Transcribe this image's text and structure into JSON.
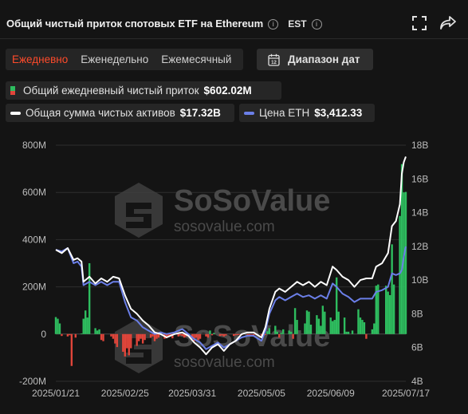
{
  "header": {
    "title": "Общий чистый приток спотовых ETF на Ethereum",
    "timezone": "EST"
  },
  "periods": [
    "Ежедневно",
    "Еженедельно",
    "Ежемесячный"
  ],
  "active_period": 0,
  "date_range_label": "Диапазон дат",
  "legend": {
    "inflow_label": "Общий ежедневный чистый приток",
    "inflow_value": "$602.02M",
    "assets_label": "Общая сумма чистых активов",
    "assets_value": "$17.32B",
    "eth_label": "Цена ETH",
    "eth_value": "$3,412.33"
  },
  "watermark": {
    "brand": "SoSoValue",
    "site": "sosovalue.com"
  },
  "colors": {
    "positive": "#2ebd5f",
    "negative": "#e0453a",
    "assets_line": "#ffffff",
    "eth_line": "#6b7fe8",
    "accent": "#ff4b2b"
  },
  "chart_data": {
    "type": "bar+line",
    "left_axis": {
      "ticks": [
        "-200M",
        "0",
        "200M",
        "400M",
        "600M",
        "800M"
      ],
      "range": [
        -200,
        800
      ],
      "unit": "M USD"
    },
    "right_axis": {
      "ticks": [
        "4B",
        "6B",
        "8B",
        "10B",
        "12B",
        "14B",
        "16B",
        "18B"
      ],
      "range": [
        4,
        18
      ],
      "unit": "B USD"
    },
    "x_ticks": [
      "2025/01/21",
      "2025/02/25",
      "2025/03/31",
      "2025/05/05",
      "2025/06/09",
      "2025/07/17"
    ],
    "x_range": [
      "2025/01/21",
      "2025/07/17"
    ],
    "daily_net_inflow": [
      {
        "date": "2025/01/21",
        "value": 72
      },
      {
        "date": "2025/01/22",
        "value": 65
      },
      {
        "date": "2025/01/23",
        "value": 45
      },
      {
        "date": "2025/01/24",
        "value": -8
      },
      {
        "date": "2025/01/27",
        "value": -10
      },
      {
        "date": "2025/01/28",
        "value": -5
      },
      {
        "date": "2025/01/29",
        "value": -135
      },
      {
        "date": "2025/01/31",
        "value": -15
      },
      {
        "date": "2025/02/03",
        "value": 2
      },
      {
        "date": "2025/02/04",
        "value": 65
      },
      {
        "date": "2025/02/05",
        "value": 100
      },
      {
        "date": "2025/02/06",
        "value": 70
      },
      {
        "date": "2025/02/07",
        "value": 300
      },
      {
        "date": "2025/02/10",
        "value": 25
      },
      {
        "date": "2025/02/11",
        "value": 15
      },
      {
        "date": "2025/02/12",
        "value": 20
      },
      {
        "date": "2025/02/13",
        "value": -25
      },
      {
        "date": "2025/02/14",
        "value": -30
      },
      {
        "date": "2025/02/18",
        "value": -10
      },
      {
        "date": "2025/02/19",
        "value": -20
      },
      {
        "date": "2025/02/20",
        "value": -40
      },
      {
        "date": "2025/02/21",
        "value": -55
      },
      {
        "date": "2025/02/24",
        "value": -75
      },
      {
        "date": "2025/02/25",
        "value": -95
      },
      {
        "date": "2025/02/26",
        "value": -60
      },
      {
        "date": "2025/02/27",
        "value": -90
      },
      {
        "date": "2025/02/28",
        "value": -60
      },
      {
        "date": "2025/03/03",
        "value": -50
      },
      {
        "date": "2025/03/04",
        "value": -30
      },
      {
        "date": "2025/03/05",
        "value": -20
      },
      {
        "date": "2025/03/06",
        "value": -40
      },
      {
        "date": "2025/03/07",
        "value": -25
      },
      {
        "date": "2025/03/10",
        "value": -15
      },
      {
        "date": "2025/03/11",
        "value": -10
      },
      {
        "date": "2025/03/12",
        "value": -30
      },
      {
        "date": "2025/03/13",
        "value": -20
      },
      {
        "date": "2025/03/14",
        "value": -15
      },
      {
        "date": "2025/03/17",
        "value": -20
      },
      {
        "date": "2025/03/18",
        "value": -12
      },
      {
        "date": "2025/03/19",
        "value": -10
      },
      {
        "date": "2025/03/20",
        "value": -8
      },
      {
        "date": "2025/03/21",
        "value": -18
      },
      {
        "date": "2025/03/24",
        "value": -10
      },
      {
        "date": "2025/03/25",
        "value": -5
      },
      {
        "date": "2025/03/26",
        "value": -8
      },
      {
        "date": "2025/03/27",
        "value": -15
      },
      {
        "date": "2025/03/28",
        "value": -10
      },
      {
        "date": "2025/03/31",
        "value": -20
      },
      {
        "date": "2025/04/01",
        "value": -30
      },
      {
        "date": "2025/04/02",
        "value": -15
      },
      {
        "date": "2025/04/03",
        "value": -25
      },
      {
        "date": "2025/04/04",
        "value": -20
      },
      {
        "date": "2025/04/07",
        "value": -10
      },
      {
        "date": "2025/04/08",
        "value": -15
      },
      {
        "date": "2025/04/09",
        "value": 15
      },
      {
        "date": "2025/04/10",
        "value": -5
      },
      {
        "date": "2025/04/11",
        "value": 5
      },
      {
        "date": "2025/04/14",
        "value": -8
      },
      {
        "date": "2025/04/15",
        "value": -6
      },
      {
        "date": "2025/04/16",
        "value": -10
      },
      {
        "date": "2025/04/17",
        "value": -6
      },
      {
        "date": "2025/04/21",
        "value": -8
      },
      {
        "date": "2025/04/22",
        "value": -5
      },
      {
        "date": "2025/04/23",
        "value": -4
      },
      {
        "date": "2025/04/24",
        "value": -3
      },
      {
        "date": "2025/04/25",
        "value": -4
      },
      {
        "date": "2025/04/28",
        "value": -6
      },
      {
        "date": "2025/04/29",
        "value": -4
      },
      {
        "date": "2025/04/30",
        "value": -3
      },
      {
        "date": "2025/05/01",
        "value": -5
      },
      {
        "date": "2025/05/02",
        "value": -2
      },
      {
        "date": "2025/05/05",
        "value": -6
      },
      {
        "date": "2025/05/06",
        "value": -3
      },
      {
        "date": "2025/05/07",
        "value": -4
      },
      {
        "date": "2025/05/08",
        "value": 12
      },
      {
        "date": "2025/05/09",
        "value": 25
      },
      {
        "date": "2025/05/12",
        "value": 35
      },
      {
        "date": "2025/05/13",
        "value": 10
      },
      {
        "date": "2025/05/14",
        "value": -15
      },
      {
        "date": "2025/05/15",
        "value": 5
      },
      {
        "date": "2025/05/16",
        "value": 20
      },
      {
        "date": "2025/05/19",
        "value": 15
      },
      {
        "date": "2025/05/20",
        "value": 10
      },
      {
        "date": "2025/05/21",
        "value": -20
      },
      {
        "date": "2025/05/22",
        "value": 110
      },
      {
        "date": "2025/05/23",
        "value": 60
      },
      {
        "date": "2025/05/27",
        "value": 45
      },
      {
        "date": "2025/05/28",
        "value": 100
      },
      {
        "date": "2025/05/29",
        "value": 95
      },
      {
        "date": "2025/05/30",
        "value": 40
      },
      {
        "date": "2025/06/02",
        "value": 80
      },
      {
        "date": "2025/06/03",
        "value": 65
      },
      {
        "date": "2025/06/04",
        "value": 35
      },
      {
        "date": "2025/06/05",
        "value": 120
      },
      {
        "date": "2025/06/06",
        "value": 95
      },
      {
        "date": "2025/06/09",
        "value": 70
      },
      {
        "date": "2025/06/10",
        "value": 55
      },
      {
        "date": "2025/06/11",
        "value": 60
      },
      {
        "date": "2025/06/12",
        "value": 240
      },
      {
        "date": "2025/06/13",
        "value": 95
      },
      {
        "date": "2025/06/16",
        "value": 70
      },
      {
        "date": "2025/06/17",
        "value": 10
      },
      {
        "date": "2025/06/18",
        "value": 10
      },
      {
        "date": "2025/06/20",
        "value": 15
      },
      {
        "date": "2025/06/23",
        "value": 105
      },
      {
        "date": "2025/06/24",
        "value": 70
      },
      {
        "date": "2025/06/25",
        "value": 60
      },
      {
        "date": "2025/06/26",
        "value": 50
      },
      {
        "date": "2025/06/27",
        "value": -20
      },
      {
        "date": "2025/06/30",
        "value": 20
      },
      {
        "date": "2025/07/01",
        "value": 45
      },
      {
        "date": "2025/07/02",
        "value": 205
      },
      {
        "date": "2025/07/03",
        "value": 210
      },
      {
        "date": "2025/07/07",
        "value": 205
      },
      {
        "date": "2025/07/08",
        "value": 180
      },
      {
        "date": "2025/07/09",
        "value": 165
      },
      {
        "date": "2025/07/10",
        "value": 380
      },
      {
        "date": "2025/07/11",
        "value": 210
      },
      {
        "date": "2025/07/14",
        "value": 500
      },
      {
        "date": "2025/07/15",
        "value": 720
      },
      {
        "date": "2025/07/16",
        "value": 600
      },
      {
        "date": "2025/07/17",
        "value": 602.02
      }
    ],
    "total_net_assets_B": [
      {
        "date": "2025/01/21",
        "value": 11.8
      },
      {
        "date": "2025/01/24",
        "value": 11.6
      },
      {
        "date": "2025/01/27",
        "value": 11.9
      },
      {
        "date": "2025/01/30",
        "value": 11.2
      },
      {
        "date": "2025/02/01",
        "value": 11.3
      },
      {
        "date": "2025/02/03",
        "value": 11.1
      },
      {
        "date": "2025/02/04",
        "value": 9.9
      },
      {
        "date": "2025/02/07",
        "value": 10.2
      },
      {
        "date": "2025/02/10",
        "value": 9.8
      },
      {
        "date": "2025/02/13",
        "value": 10.1
      },
      {
        "date": "2025/02/16",
        "value": 9.9
      },
      {
        "date": "2025/02/19",
        "value": 10.2
      },
      {
        "date": "2025/02/22",
        "value": 10.1
      },
      {
        "date": "2025/02/25",
        "value": 9.1
      },
      {
        "date": "2025/02/28",
        "value": 8.3
      },
      {
        "date": "2025/03/03",
        "value": 8.0
      },
      {
        "date": "2025/03/06",
        "value": 7.6
      },
      {
        "date": "2025/03/09",
        "value": 7.3
      },
      {
        "date": "2025/03/12",
        "value": 6.9
      },
      {
        "date": "2025/03/15",
        "value": 6.8
      },
      {
        "date": "2025/03/18",
        "value": 6.6
      },
      {
        "date": "2025/03/22",
        "value": 6.8
      },
      {
        "date": "2025/03/26",
        "value": 6.9
      },
      {
        "date": "2025/03/29",
        "value": 6.7
      },
      {
        "date": "2025/04/01",
        "value": 6.3
      },
      {
        "date": "2025/04/04",
        "value": 6.0
      },
      {
        "date": "2025/04/07",
        "value": 5.6
      },
      {
        "date": "2025/04/10",
        "value": 6.0
      },
      {
        "date": "2025/04/13",
        "value": 6.2
      },
      {
        "date": "2025/04/16",
        "value": 5.8
      },
      {
        "date": "2025/04/19",
        "value": 6.2
      },
      {
        "date": "2025/04/22",
        "value": 6.4
      },
      {
        "date": "2025/04/25",
        "value": 6.8
      },
      {
        "date": "2025/04/28",
        "value": 6.9
      },
      {
        "date": "2025/05/01",
        "value": 6.9
      },
      {
        "date": "2025/05/05",
        "value": 6.6
      },
      {
        "date": "2025/05/07",
        "value": 7.2
      },
      {
        "date": "2025/05/09",
        "value": 8.3
      },
      {
        "date": "2025/05/12",
        "value": 9.3
      },
      {
        "date": "2025/05/14",
        "value": 9.5
      },
      {
        "date": "2025/05/17",
        "value": 9.3
      },
      {
        "date": "2025/05/20",
        "value": 9.6
      },
      {
        "date": "2025/05/23",
        "value": 9.9
      },
      {
        "date": "2025/05/26",
        "value": 9.7
      },
      {
        "date": "2025/05/29",
        "value": 9.9
      },
      {
        "date": "2025/06/01",
        "value": 9.6
      },
      {
        "date": "2025/06/04",
        "value": 9.9
      },
      {
        "date": "2025/06/07",
        "value": 9.7
      },
      {
        "date": "2025/06/10",
        "value": 10.8
      },
      {
        "date": "2025/06/12",
        "value": 10.6
      },
      {
        "date": "2025/06/15",
        "value": 10.2
      },
      {
        "date": "2025/06/18",
        "value": 10.0
      },
      {
        "date": "2025/06/21",
        "value": 9.6
      },
      {
        "date": "2025/06/24",
        "value": 10.0
      },
      {
        "date": "2025/06/27",
        "value": 10.1
      },
      {
        "date": "2025/06/30",
        "value": 10.1
      },
      {
        "date": "2025/07/02",
        "value": 10.8
      },
      {
        "date": "2025/07/05",
        "value": 11.0
      },
      {
        "date": "2025/07/08",
        "value": 11.6
      },
      {
        "date": "2025/07/10",
        "value": 13.2
      },
      {
        "date": "2025/07/12",
        "value": 13.5
      },
      {
        "date": "2025/07/14",
        "value": 14.5
      },
      {
        "date": "2025/07/15",
        "value": 16.3
      },
      {
        "date": "2025/07/16",
        "value": 17.0
      },
      {
        "date": "2025/07/17",
        "value": 17.32
      }
    ],
    "eth_price_scaled_B": [
      {
        "date": "2025/01/21",
        "value": 11.8
      },
      {
        "date": "2025/01/24",
        "value": 11.7
      },
      {
        "date": "2025/01/27",
        "value": 11.9
      },
      {
        "date": "2025/01/30",
        "value": 11.0
      },
      {
        "date": "2025/02/01",
        "value": 11.1
      },
      {
        "date": "2025/02/03",
        "value": 10.8
      },
      {
        "date": "2025/02/04",
        "value": 9.7
      },
      {
        "date": "2025/02/07",
        "value": 9.9
      },
      {
        "date": "2025/02/10",
        "value": 9.7
      },
      {
        "date": "2025/02/13",
        "value": 9.9
      },
      {
        "date": "2025/02/16",
        "value": 9.7
      },
      {
        "date": "2025/02/19",
        "value": 9.9
      },
      {
        "date": "2025/02/22",
        "value": 9.9
      },
      {
        "date": "2025/02/25",
        "value": 8.7
      },
      {
        "date": "2025/02/28",
        "value": 7.8
      },
      {
        "date": "2025/03/03",
        "value": 7.6
      },
      {
        "date": "2025/03/06",
        "value": 7.2
      },
      {
        "date": "2025/03/09",
        "value": 7.0
      },
      {
        "date": "2025/03/12",
        "value": 6.8
      },
      {
        "date": "2025/03/15",
        "value": 6.9
      },
      {
        "date": "2025/03/18",
        "value": 6.8
      },
      {
        "date": "2025/03/22",
        "value": 6.9
      },
      {
        "date": "2025/03/26",
        "value": 7.1
      },
      {
        "date": "2025/03/29",
        "value": 6.8
      },
      {
        "date": "2025/04/01",
        "value": 6.5
      },
      {
        "date": "2025/04/04",
        "value": 6.3
      },
      {
        "date": "2025/04/07",
        "value": 5.9
      },
      {
        "date": "2025/04/10",
        "value": 6.1
      },
      {
        "date": "2025/04/13",
        "value": 6.3
      },
      {
        "date": "2025/04/16",
        "value": 6.0
      },
      {
        "date": "2025/04/19",
        "value": 6.2
      },
      {
        "date": "2025/04/22",
        "value": 6.4
      },
      {
        "date": "2025/04/25",
        "value": 6.6
      },
      {
        "date": "2025/04/28",
        "value": 6.7
      },
      {
        "date": "2025/05/01",
        "value": 6.7
      },
      {
        "date": "2025/05/05",
        "value": 6.4
      },
      {
        "date": "2025/05/07",
        "value": 7.0
      },
      {
        "date": "2025/05/09",
        "value": 8.0
      },
      {
        "date": "2025/05/12",
        "value": 8.8
      },
      {
        "date": "2025/05/14",
        "value": 9.0
      },
      {
        "date": "2025/05/17",
        "value": 8.8
      },
      {
        "date": "2025/05/20",
        "value": 9.0
      },
      {
        "date": "2025/05/23",
        "value": 9.2
      },
      {
        "date": "2025/05/26",
        "value": 9.0
      },
      {
        "date": "2025/05/29",
        "value": 9.1
      },
      {
        "date": "2025/06/01",
        "value": 8.9
      },
      {
        "date": "2025/06/04",
        "value": 9.1
      },
      {
        "date": "2025/06/07",
        "value": 8.9
      },
      {
        "date": "2025/06/10",
        "value": 9.8
      },
      {
        "date": "2025/06/12",
        "value": 9.6
      },
      {
        "date": "2025/06/15",
        "value": 9.2
      },
      {
        "date": "2025/06/18",
        "value": 9.0
      },
      {
        "date": "2025/06/21",
        "value": 8.7
      },
      {
        "date": "2025/06/24",
        "value": 8.9
      },
      {
        "date": "2025/06/27",
        "value": 8.9
      },
      {
        "date": "2025/06/30",
        "value": 8.9
      },
      {
        "date": "2025/07/02",
        "value": 9.3
      },
      {
        "date": "2025/07/05",
        "value": 9.4
      },
      {
        "date": "2025/07/08",
        "value": 9.6
      },
      {
        "date": "2025/07/10",
        "value": 10.4
      },
      {
        "date": "2025/07/12",
        "value": 10.3
      },
      {
        "date": "2025/07/14",
        "value": 10.4
      },
      {
        "date": "2025/07/15",
        "value": 10.6
      },
      {
        "date": "2025/07/16",
        "value": 11.4
      },
      {
        "date": "2025/07/17",
        "value": 12.0
      }
    ]
  }
}
